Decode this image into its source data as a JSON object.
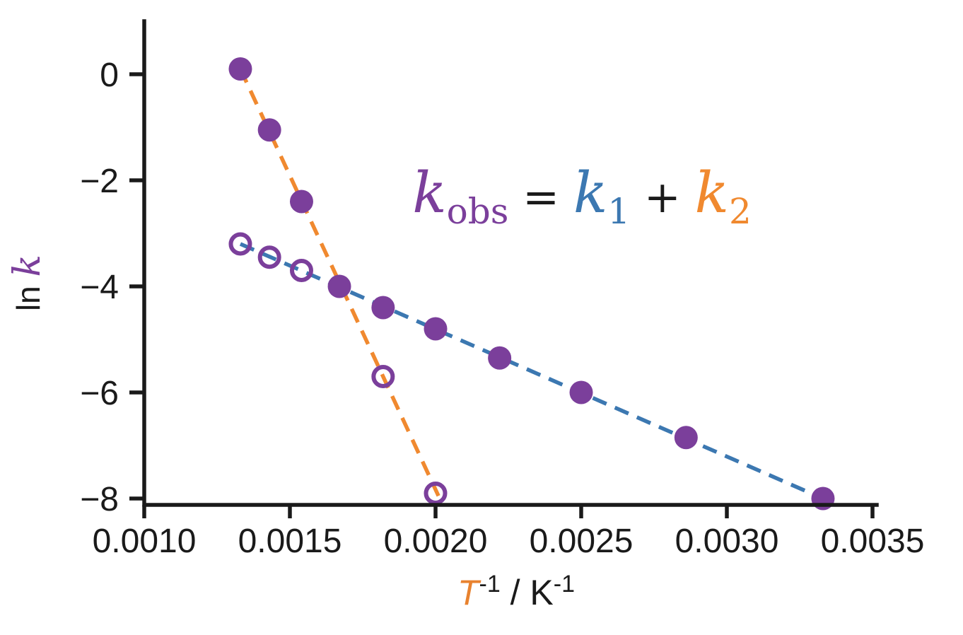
{
  "figure": {
    "background": "#ffffff",
    "annotation": {
      "text_plain": "kobs = k1 + k2",
      "parts": [
        {
          "text": "k",
          "font": "serif",
          "size": 80,
          "italic": true,
          "color": "#7b3f9b",
          "dy": 0
        },
        {
          "text": "obs",
          "font": "serif",
          "size": 50,
          "italic": false,
          "color": "#7b3f9b",
          "dy": 16
        },
        {
          "text": " = ",
          "font": "serif",
          "size": 62,
          "italic": false,
          "color": "#1a1a1a",
          "dy": -16
        },
        {
          "text": "k",
          "font": "serif",
          "size": 80,
          "italic": true,
          "color": "#3c78b1",
          "dy": 0
        },
        {
          "text": "1",
          "font": "serif",
          "size": 50,
          "italic": false,
          "color": "#3c78b1",
          "dy": 16
        },
        {
          "text": " + ",
          "font": "serif",
          "size": 62,
          "italic": false,
          "color": "#1a1a1a",
          "dy": -16
        },
        {
          "text": "k",
          "font": "serif",
          "size": 80,
          "italic": true,
          "color": "#f0892f",
          "dy": 0
        },
        {
          "text": "2",
          "font": "serif",
          "size": 50,
          "italic": false,
          "color": "#f0892f",
          "dy": 16
        }
      ]
    },
    "xlabel": {
      "text_plain": "T-1 / K-1",
      "parts": [
        {
          "text": "T",
          "font": "sans",
          "size": 50,
          "italic": true,
          "color": "#e8822f",
          "dy": 0
        },
        {
          "text": "-1",
          "font": "sans",
          "size": 34,
          "italic": false,
          "color": "#1a1a1a",
          "dy": -18
        },
        {
          "text": " / K",
          "font": "sans",
          "size": 50,
          "italic": false,
          "color": "#1a1a1a",
          "dy": 18
        },
        {
          "text": "-1",
          "font": "sans",
          "size": 34,
          "italic": false,
          "color": "#1a1a1a",
          "dy": -18
        }
      ]
    },
    "ylabel": {
      "text_plain": "ln k",
      "parts": [
        {
          "text": "ln ",
          "font": "sans",
          "size": 46,
          "italic": false,
          "color": "#1a1a1a",
          "dy": 0
        },
        {
          "text": "k",
          "font": "serif",
          "size": 52,
          "italic": true,
          "color": "#7b3f9b",
          "dy": 0
        }
      ]
    }
  },
  "colors": {
    "purple": "#7b3f9b",
    "blue": "#3c78b1",
    "orange": "#f0892f",
    "axis": "#1a1a1a",
    "background": "#ffffff"
  },
  "chart_data": {
    "type": "scatter",
    "title": "",
    "xlabel": "T^-1 / K^-1",
    "ylabel": "ln k",
    "grid": false,
    "legend": "none",
    "xlim": [
      0.001,
      0.003515
    ],
    "ylim": [
      -8.12,
      1.0
    ],
    "x_ticks": {
      "values": [
        0.001,
        0.0015,
        0.002,
        0.0025,
        0.003,
        0.0035
      ],
      "labels": [
        "0.0010",
        "0.0015",
        "0.0020",
        "0.0025",
        "0.0030",
        "0.0035"
      ]
    },
    "y_ticks": {
      "values": [
        0,
        -2,
        -4,
        -6,
        -8
      ],
      "labels": [
        "0",
        "−2",
        "−4",
        "−6",
        "−8"
      ]
    },
    "series": [
      {
        "name": "k-obs-observed",
        "type": "scatter",
        "marker": "filled-circle",
        "color": "#7b3f9b",
        "points": [
          [
            0.00133,
            0.1
          ],
          [
            0.00143,
            -1.05
          ],
          [
            0.00154,
            -2.4
          ],
          [
            0.00167,
            -4.0
          ],
          [
            0.00182,
            -4.4
          ],
          [
            0.002,
            -4.8
          ],
          [
            0.00222,
            -5.35
          ],
          [
            0.0025,
            -6.0
          ],
          [
            0.00286,
            -6.85
          ],
          [
            0.00333,
            -8.0
          ]
        ]
      },
      {
        "name": "component-rate-points",
        "type": "scatter",
        "marker": "open-circle",
        "color": "#7b3f9b",
        "points": [
          [
            0.00133,
            -3.2
          ],
          [
            0.00143,
            -3.45
          ],
          [
            0.00154,
            -3.7
          ],
          [
            0.00182,
            -5.7
          ],
          [
            0.002,
            -7.9
          ]
        ]
      },
      {
        "name": "k1-fit-line",
        "type": "line",
        "dash": true,
        "color": "#3c78b1",
        "points": [
          [
            0.00133,
            -3.2
          ],
          [
            0.00333,
            -8.0
          ]
        ]
      },
      {
        "name": "k2-fit-line",
        "type": "line",
        "dash": true,
        "color": "#f0892f",
        "points": [
          [
            0.00133,
            0.1
          ],
          [
            0.00201,
            -7.95
          ]
        ]
      }
    ]
  }
}
